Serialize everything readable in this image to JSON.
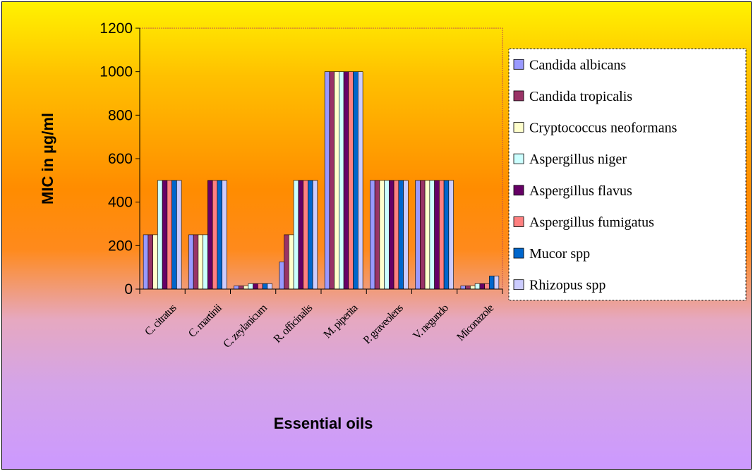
{
  "chart_data": {
    "type": "bar",
    "title": "",
    "xlabel": "Essential oils",
    "ylabel": "MIC in µg/ml",
    "ylim": [
      0,
      1200
    ],
    "yticks": [
      0,
      200,
      400,
      600,
      800,
      1000,
      1200
    ],
    "categories": [
      "C. citratus",
      "C. martinii",
      "C. zeylanicum",
      "R. officinalis",
      "M. piperita",
      "P. graveolens",
      "V. negundo",
      "Miconazole"
    ],
    "legend_position": "right",
    "series": [
      {
        "name": "Candida albicans",
        "color": "#9999ff",
        "values": [
          250,
          250,
          15,
          125,
          1000,
          500,
          500,
          15
        ]
      },
      {
        "name": "Candida tropicalis",
        "color": "#993366",
        "values": [
          250,
          250,
          15,
          250,
          1000,
          500,
          500,
          15
        ]
      },
      {
        "name": "Cryptococcus neoformans",
        "color": "#ffffcc",
        "values": [
          250,
          250,
          15,
          250,
          1000,
          500,
          500,
          15
        ]
      },
      {
        "name": "Aspergillus niger",
        "color": "#ccffff",
        "values": [
          500,
          250,
          25,
          500,
          1000,
          500,
          500,
          25
        ]
      },
      {
        "name": "Aspergillus flavus",
        "color": "#660066",
        "values": [
          500,
          500,
          25,
          500,
          1000,
          500,
          500,
          25
        ]
      },
      {
        "name": "Aspergillus fumigatus",
        "color": "#ff8080",
        "values": [
          500,
          500,
          25,
          500,
          1000,
          500,
          500,
          25
        ]
      },
      {
        "name": "Mucor spp",
        "color": "#0066cc",
        "values": [
          500,
          500,
          25,
          500,
          1000,
          500,
          500,
          60
        ]
      },
      {
        "name": "Rhizopus spp",
        "color": "#ccccff",
        "values": [
          500,
          500,
          25,
          500,
          1000,
          500,
          500,
          60
        ]
      }
    ]
  }
}
